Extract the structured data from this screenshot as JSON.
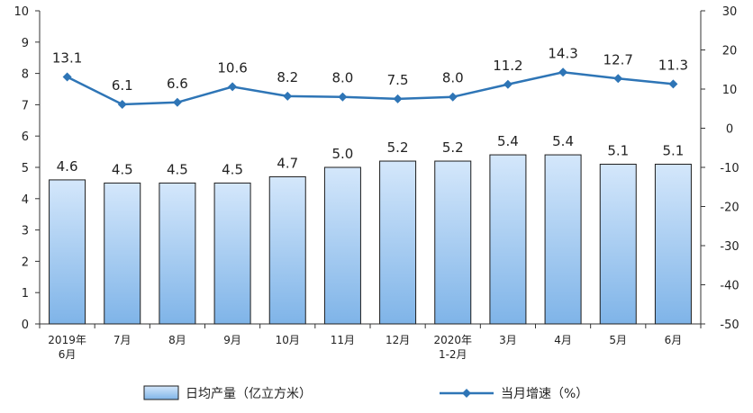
{
  "chart_data": {
    "type": "bar",
    "categories": [
      [
        "2019年",
        "6月"
      ],
      [
        "7月"
      ],
      [
        "8月"
      ],
      [
        "9月"
      ],
      [
        "10月"
      ],
      [
        "11月"
      ],
      [
        "12月"
      ],
      [
        "2020年",
        "1-2月"
      ],
      [
        "3月"
      ],
      [
        "4月"
      ],
      [
        "5月"
      ],
      [
        "6月"
      ]
    ],
    "series": [
      {
        "name": "日均产量（亿立方米）",
        "kind": "bar",
        "axis": "left",
        "values": [
          4.6,
          4.5,
          4.5,
          4.5,
          4.7,
          5.0,
          5.2,
          5.2,
          5.4,
          5.4,
          5.1,
          5.1
        ],
        "labels": [
          "4.6",
          "4.5",
          "4.5",
          "4.5",
          "4.7",
          "5.0",
          "5.2",
          "5.2",
          "5.4",
          "5.4",
          "5.1",
          "5.1"
        ]
      },
      {
        "name": "当月增速（%）",
        "kind": "line",
        "axis": "right",
        "values": [
          13.1,
          6.1,
          6.6,
          10.6,
          8.2,
          8.0,
          7.5,
          8.0,
          11.2,
          14.3,
          12.7,
          11.3
        ],
        "labels": [
          "13.1",
          "6.1",
          "6.6",
          "10.6",
          "8.2",
          "8.0",
          "7.5",
          "8.0",
          "11.2",
          "14.3",
          "12.7",
          "11.3"
        ]
      }
    ],
    "y_left": {
      "lim": [
        0,
        10
      ],
      "ticks": [
        "0",
        "1",
        "2",
        "3",
        "4",
        "5",
        "6",
        "7",
        "8",
        "9",
        "10"
      ]
    },
    "y_right": {
      "lim": [
        -50,
        30
      ],
      "ticks": [
        "-50",
        "-40",
        "-30",
        "-20",
        "-10",
        "0",
        "10",
        "20",
        "30"
      ]
    },
    "grid": false,
    "legend": "bottom",
    "colors": {
      "bar_fill_top": "#d4e7fb",
      "bar_fill_bottom": "#7fb4e8",
      "bar_stroke": "#1d1d1d",
      "line": "#2e75b6",
      "axis": "#333333"
    }
  }
}
